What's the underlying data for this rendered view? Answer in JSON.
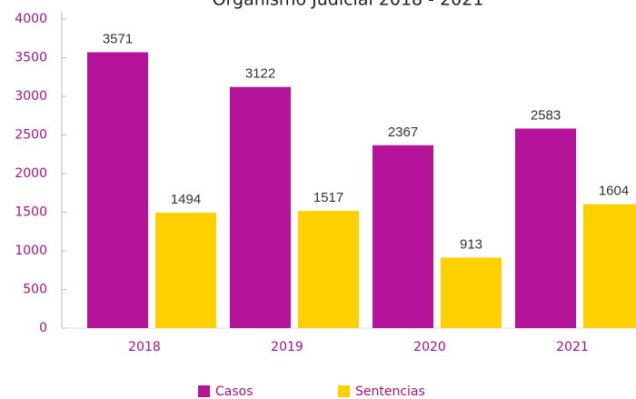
{
  "chart_data": {
    "type": "bar",
    "title": "Organismo Judicial 2018 - 2021",
    "categories": [
      "2018",
      "2019",
      "2020",
      "2021"
    ],
    "series": [
      {
        "name": "Casos",
        "color": "#b5139a",
        "values": [
          3571,
          3122,
          2367,
          2583
        ]
      },
      {
        "name": "Sentencias",
        "color": "#ffd000",
        "values": [
          1494,
          1517,
          913,
          1604
        ]
      }
    ],
    "ylim": [
      0,
      4000
    ],
    "yticks": [
      0,
      500,
      1000,
      1500,
      2000,
      2500,
      3000,
      3500,
      4000
    ],
    "legend": "bottom"
  }
}
